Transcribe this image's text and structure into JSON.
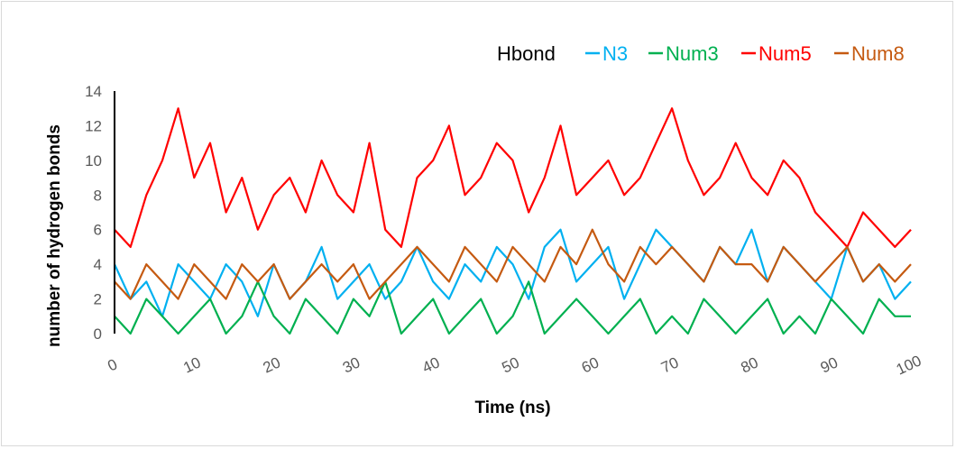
{
  "chart_data": {
    "type": "line",
    "title": "",
    "xlabel": "Time (ns)",
    "ylabel": "number of hydrogen bonds",
    "xlim": [
      0,
      100
    ],
    "ylim": [
      0,
      14
    ],
    "x_ticks": [
      0,
      10,
      20,
      30,
      40,
      50,
      60,
      70,
      80,
      90,
      100
    ],
    "y_ticks": [
      0,
      2,
      4,
      6,
      8,
      10,
      12,
      14
    ],
    "grid": false,
    "legend": {
      "title": "Hbond",
      "position": "top-right"
    },
    "series": [
      {
        "name": "N3",
        "color": "#00b0f0",
        "x": [
          0,
          2,
          4,
          6,
          8,
          10,
          12,
          14,
          16,
          18,
          20,
          22,
          24,
          26,
          28,
          30,
          32,
          34,
          36,
          38,
          40,
          42,
          44,
          46,
          48,
          50,
          52,
          54,
          56,
          58,
          60,
          62,
          64,
          66,
          68,
          70,
          72,
          74,
          76,
          78,
          80,
          82,
          84,
          86,
          88,
          90,
          92,
          94,
          96,
          98,
          100
        ],
        "values": [
          4,
          2,
          3,
          1,
          4,
          3,
          2,
          4,
          3,
          1,
          4,
          2,
          3,
          5,
          2,
          3,
          4,
          2,
          3,
          5,
          3,
          2,
          4,
          3,
          5,
          4,
          2,
          5,
          6,
          3,
          4,
          5,
          2,
          4,
          6,
          5,
          4,
          3,
          5,
          4,
          6,
          3,
          5,
          4,
          3,
          2,
          5,
          3,
          4,
          2,
          3
        ]
      },
      {
        "name": "Num3",
        "color": "#00b050",
        "x": [
          0,
          2,
          4,
          6,
          8,
          10,
          12,
          14,
          16,
          18,
          20,
          22,
          24,
          26,
          28,
          30,
          32,
          34,
          36,
          38,
          40,
          42,
          44,
          46,
          48,
          50,
          52,
          54,
          56,
          58,
          60,
          62,
          64,
          66,
          68,
          70,
          72,
          74,
          76,
          78,
          80,
          82,
          84,
          86,
          88,
          90,
          92,
          94,
          96,
          98,
          100
        ],
        "values": [
          1,
          0,
          2,
          1,
          0,
          1,
          2,
          0,
          1,
          3,
          1,
          0,
          2,
          1,
          0,
          2,
          1,
          3,
          0,
          1,
          2,
          0,
          1,
          2,
          0,
          1,
          3,
          0,
          1,
          2,
          1,
          0,
          1,
          2,
          0,
          1,
          0,
          2,
          1,
          0,
          1,
          2,
          0,
          1,
          0,
          2,
          1,
          0,
          2,
          1,
          1
        ]
      },
      {
        "name": "Num5",
        "color": "#ff0000",
        "x": [
          0,
          2,
          4,
          6,
          8,
          10,
          12,
          14,
          16,
          18,
          20,
          22,
          24,
          26,
          28,
          30,
          32,
          34,
          36,
          38,
          40,
          42,
          44,
          46,
          48,
          50,
          52,
          54,
          56,
          58,
          60,
          62,
          64,
          66,
          68,
          70,
          72,
          74,
          76,
          78,
          80,
          82,
          84,
          86,
          88,
          90,
          92,
          94,
          96,
          98,
          100
        ],
        "values": [
          6,
          5,
          8,
          10,
          13,
          9,
          11,
          7,
          9,
          6,
          8,
          9,
          7,
          10,
          8,
          7,
          11,
          6,
          5,
          9,
          10,
          12,
          8,
          9,
          11,
          10,
          7,
          9,
          12,
          8,
          9,
          10,
          8,
          9,
          11,
          13,
          10,
          8,
          9,
          11,
          9,
          8,
          10,
          9,
          7,
          6,
          5,
          7,
          6,
          5,
          6
        ]
      },
      {
        "name": "Num8",
        "color": "#c55a11",
        "x": [
          0,
          2,
          4,
          6,
          8,
          10,
          12,
          14,
          16,
          18,
          20,
          22,
          24,
          26,
          28,
          30,
          32,
          34,
          36,
          38,
          40,
          42,
          44,
          46,
          48,
          50,
          52,
          54,
          56,
          58,
          60,
          62,
          64,
          66,
          68,
          70,
          72,
          74,
          76,
          78,
          80,
          82,
          84,
          86,
          88,
          90,
          92,
          94,
          96,
          98,
          100
        ],
        "values": [
          3,
          2,
          4,
          3,
          2,
          4,
          3,
          2,
          4,
          3,
          4,
          2,
          3,
          4,
          3,
          4,
          2,
          3,
          4,
          5,
          4,
          3,
          5,
          4,
          3,
          5,
          4,
          3,
          5,
          4,
          6,
          4,
          3,
          5,
          4,
          5,
          4,
          3,
          5,
          4,
          4,
          3,
          5,
          4,
          3,
          4,
          5,
          3,
          4,
          3,
          4
        ]
      }
    ]
  }
}
